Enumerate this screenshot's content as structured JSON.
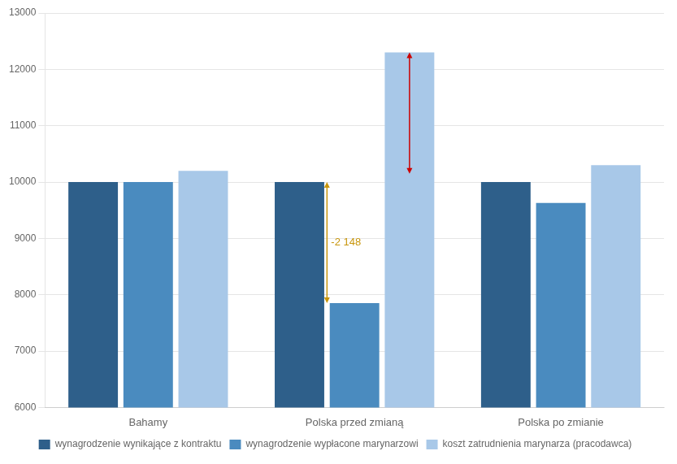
{
  "chart_data": {
    "type": "bar",
    "categories": [
      "Bahamy",
      "Polska przed zmianą",
      "Polska po zmianie"
    ],
    "series": [
      {
        "name": "wynagrodzenie wynikające z kontraktu",
        "color": "#2e5f8a",
        "values": [
          10000,
          10000,
          10000
        ]
      },
      {
        "name": "wynagrodzenie wypłacone marynarzowi",
        "color": "#4a8bbf",
        "values": [
          10000,
          7852,
          9630
        ]
      },
      {
        "name": "koszt zatrudnienia marynarza (pracodawca)",
        "color": "#a8c8e8",
        "values": [
          10200,
          12300,
          10300
        ]
      }
    ],
    "ylim": [
      6000,
      13000
    ],
    "yticks": [
      6000,
      7000,
      8000,
      9000,
      10000,
      11000,
      12000,
      13000
    ],
    "grid": true,
    "legend": "bottom",
    "annotations": [
      {
        "text": "-2 148",
        "color": "#c8960c",
        "category": "Polska przed zmianą",
        "series": [
          "wynagrodzenie wynikające z kontraktu",
          "wynagrodzenie wypłacone marynarzowi"
        ],
        "from": 10000,
        "to": 7852
      },
      {
        "color": "#cc0000",
        "category": "Polska przed zmianą",
        "series": [
          "koszt zatrudnienia marynarza (pracodawca)"
        ],
        "from": 12300,
        "to": 10150
      }
    ]
  }
}
